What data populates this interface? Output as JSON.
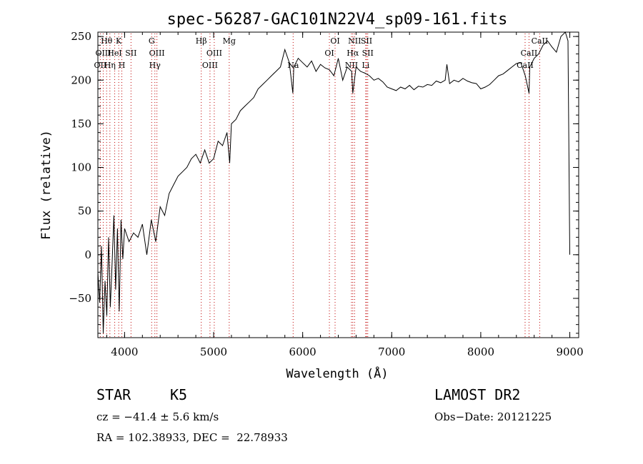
{
  "chart_data": {
    "type": "line",
    "title": "spec-56287-GAC101N22V4_sp09-161.fits",
    "xlabel": "Wavelength (Å)",
    "ylabel": "Flux (relative)",
    "xlim": [
      3700,
      9100
    ],
    "ylim": [
      -95,
      255
    ],
    "xticks": [
      4000,
      5000,
      6000,
      7000,
      8000,
      9000
    ],
    "yticks": [
      -50,
      0,
      50,
      100,
      150,
      200,
      250
    ],
    "grid": false,
    "series": [
      {
        "x": [
          3700,
          3720,
          3740,
          3760,
          3780,
          3800,
          3820,
          3840,
          3860,
          3880,
          3900,
          3920,
          3940,
          3960,
          3980,
          4000,
          4050,
          4100,
          4150,
          4200,
          4250,
          4300,
          4350,
          4400,
          4450,
          4500,
          4550,
          4600,
          4650,
          4700,
          4750,
          4800,
          4850,
          4900,
          4950,
          5000,
          5050,
          5100,
          5150,
          5180,
          5200,
          5250,
          5300,
          5350,
          5400,
          5450,
          5500,
          5550,
          5600,
          5650,
          5700,
          5750,
          5800,
          5850,
          5890,
          5900,
          5950,
          6000,
          6050,
          6100,
          6150,
          6200,
          6250,
          6300,
          6350,
          6400,
          6450,
          6500,
          6550,
          6563,
          6600,
          6650,
          6700,
          6750,
          6800,
          6850,
          6900,
          6950,
          7000,
          7050,
          7100,
          7150,
          7200,
          7250,
          7300,
          7350,
          7400,
          7450,
          7500,
          7550,
          7600,
          7620,
          7650,
          7700,
          7750,
          7800,
          7850,
          7900,
          7950,
          8000,
          8050,
          8100,
          8150,
          8200,
          8250,
          8300,
          8350,
          8400,
          8450,
          8500,
          8542,
          8550,
          8600,
          8650,
          8700,
          8750,
          8800,
          8850,
          8900,
          8950,
          8980,
          9000
        ],
        "values": [
          -20,
          -55,
          10,
          -90,
          -30,
          -70,
          20,
          -60,
          -10,
          45,
          -40,
          30,
          -65,
          40,
          -5,
          30,
          15,
          25,
          20,
          35,
          0,
          40,
          15,
          55,
          45,
          70,
          80,
          90,
          95,
          100,
          110,
          115,
          105,
          120,
          105,
          110,
          130,
          125,
          140,
          105,
          150,
          155,
          165,
          170,
          175,
          180,
          190,
          195,
          200,
          205,
          210,
          215,
          235,
          220,
          185,
          215,
          225,
          220,
          215,
          222,
          210,
          218,
          214,
          212,
          205,
          225,
          200,
          215,
          210,
          185,
          215,
          210,
          208,
          205,
          200,
          202,
          198,
          192,
          190,
          188,
          192,
          190,
          194,
          189,
          193,
          192,
          195,
          194,
          199,
          197,
          200,
          218,
          196,
          200,
          198,
          202,
          199,
          197,
          196,
          190,
          192,
          195,
          200,
          205,
          207,
          211,
          215,
          219,
          220,
          205,
          185,
          215,
          225,
          230,
          240,
          245,
          238,
          232,
          250,
          255,
          245,
          0
        ]
      }
    ],
    "lines": [
      {
        "label": "Hθ",
        "x": 3798,
        "row": 0
      },
      {
        "label": "OIII",
        "x": 3760,
        "row": 1
      },
      {
        "label": "OII",
        "x": 3727,
        "row": 2
      },
      {
        "label": "K",
        "x": 3934,
        "row": 0
      },
      {
        "label": "HeI",
        "x": 3889,
        "row": 1
      },
      {
        "label": "Hη",
        "x": 3835,
        "row": 2
      },
      {
        "label": "SII",
        "x": 4072,
        "row": 1
      },
      {
        "label": "H",
        "x": 3969,
        "row": 2
      },
      {
        "label": "G",
        "x": 4304,
        "row": 0
      },
      {
        "label": "OIII",
        "x": 4363,
        "row": 1
      },
      {
        "label": "Hγ",
        "x": 4340,
        "row": 2
      },
      {
        "label": "Hβ",
        "x": 4861,
        "row": 0
      },
      {
        "label": "OIII",
        "x": 5007,
        "row": 1
      },
      {
        "label": "OIII",
        "x": 4959,
        "row": 2
      },
      {
        "label": "Mg",
        "x": 5175,
        "row": 0
      },
      {
        "label": "Na",
        "x": 5893,
        "row": 2
      },
      {
        "label": "OI",
        "x": 6364,
        "row": 0
      },
      {
        "label": "OI",
        "x": 6300,
        "row": 1
      },
      {
        "label": "NII",
        "x": 6583,
        "row": 0
      },
      {
        "label": "SII",
        "x": 6717,
        "row": 0
      },
      {
        "label": "Hα",
        "x": 6563,
        "row": 1
      },
      {
        "label": "SII",
        "x": 6731,
        "row": 1
      },
      {
        "label": "NII",
        "x": 6548,
        "row": 2
      },
      {
        "label": "Li",
        "x": 6708,
        "row": 2
      },
      {
        "label": "CaII",
        "x": 8662,
        "row": 0
      },
      {
        "label": "CaII",
        "x": 8542,
        "row": 1
      },
      {
        "label": "CaII",
        "x": 8498,
        "row": 2
      }
    ]
  },
  "info": {
    "class_label": "STAR",
    "subclass": "K5",
    "survey": "LAMOST DR2",
    "cz": "cz = −41.4 ± 5.6 km/s",
    "obs_date": "Obs−Date: 20121225",
    "radec": "RA = 102.38933, DEC =  22.78933"
  },
  "colors": {
    "line_marker": "#c00000",
    "spectrum": "#000000",
    "axis": "#000000"
  }
}
